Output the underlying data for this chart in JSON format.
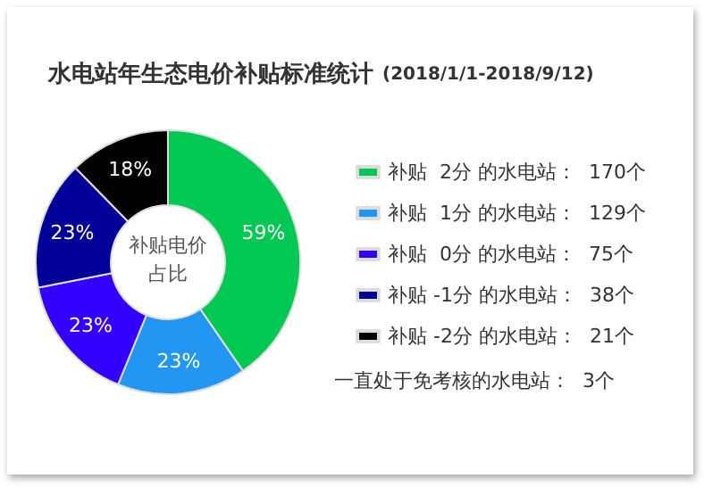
{
  "chart_data": {
    "type": "donut",
    "title": "水电站年生态电价补贴标准统计",
    "subtitle": "(2018/1/1-2018/9/12)",
    "categories": [
      "补贴  2分 的水电站：  170个",
      "补贴  1分 的水电站：  129个",
      "补贴  0分 的水电站：  75个",
      "补贴 -1分 的水电站：  38个",
      "补贴 -2分 的水电站：  21个"
    ],
    "values": [
      59,
      23,
      23,
      23,
      18
    ],
    "colors": [
      "#00c853",
      "#2196f3",
      "#3300ff",
      "#000099",
      "#000000"
    ],
    "value_labels": [
      "59%",
      "23%",
      "23%",
      "23%",
      "18%"
    ],
    "legend": "right",
    "annotations": [
      "补贴电价",
      "占比",
      "一直处于免考核的水电站：  3个"
    ]
  }
}
